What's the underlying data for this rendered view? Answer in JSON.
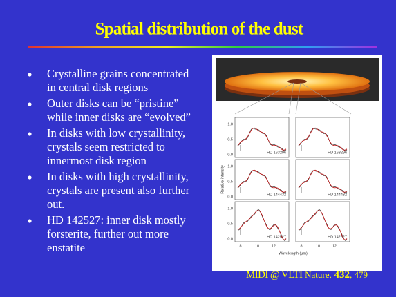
{
  "slide": {
    "title": "Spatial distribution of the dust",
    "bullets": [
      [
        "Crystalline grains concentrated",
        "in central disk regions"
      ],
      [
        "Outer disks can be “pristine”",
        "while inner disks are “evolved”"
      ],
      [
        "In disks with low crystallinity,",
        "crystals seem restricted to",
        "innermost disk region"
      ],
      [
        "In disks with high crystallinity,",
        "crystals are present also further",
        "out."
      ],
      [
        "HD 142527: inner disk mostly",
        "forsterite, further out more",
        "enstatite"
      ]
    ],
    "figure": {
      "y_axis_label": "Relative intensity",
      "x_axis_label": "Wavelength (µm)",
      "y_tick_labels": [
        "1.0",
        "0.5",
        "0.0"
      ],
      "x_tick_labels": [
        "8",
        "10",
        "12"
      ],
      "panel_labels": [
        "HD 163296",
        "HD 144432",
        "HD 142527"
      ]
    },
    "caption": {
      "source": "MIDI @ VLTI",
      "journal": "Nature,",
      "volume": "432",
      "pages": ", 479"
    }
  }
}
